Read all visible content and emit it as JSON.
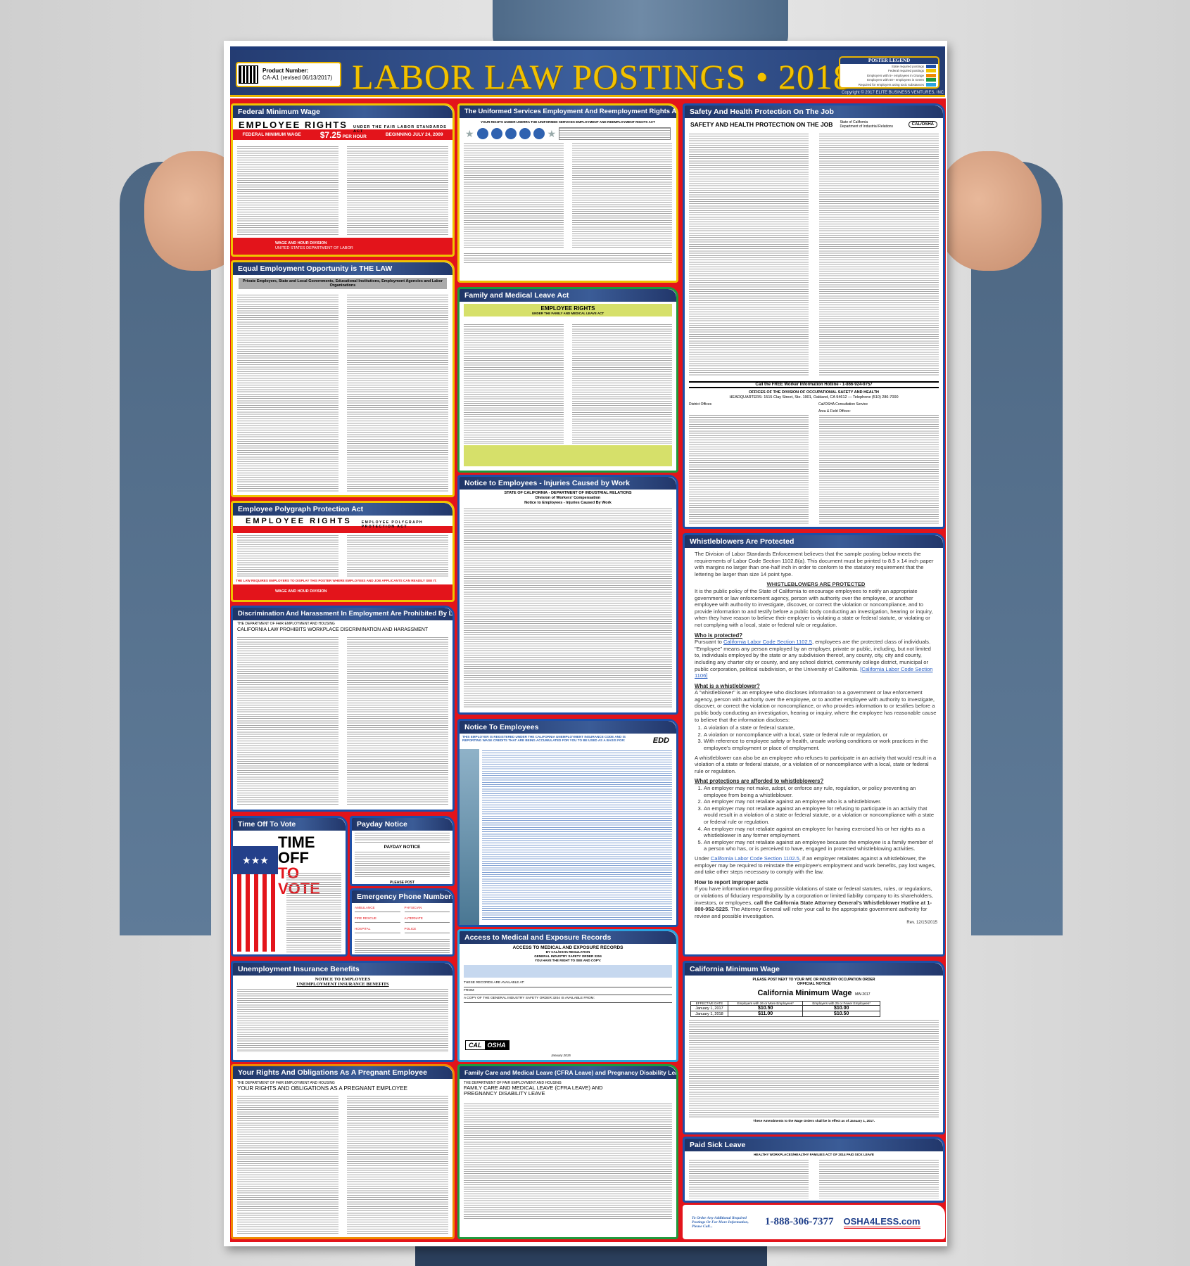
{
  "header": {
    "product_label": "Product Number:",
    "product_number": "CA-A1 (revised 06/13/2017)",
    "title": "LABOR LAW POSTINGS • 2018",
    "legend_title": "POSTER LEGEND",
    "legend_items": [
      {
        "label": "State required postings",
        "color": "#1d4fa8"
      },
      {
        "label": "Federal required postings",
        "color": "#f0c400"
      },
      {
        "label": "Employers with 5+ employees in Orange",
        "color": "#f08a00"
      },
      {
        "label": "Employers with 50+ employees in Green",
        "color": "#1e9a3c"
      },
      {
        "label": "Required for employers using toxic substances",
        "color": "#2aa3e0"
      }
    ],
    "copyright": "Copyright © 2017 ELITE BUSINESS VENTURES, INC"
  },
  "panels": {
    "fmw": {
      "title": "Federal Minimum Wage",
      "heading": "EMPLOYEE RIGHTS",
      "subheading": "UNDER THE FAIR LABOR STANDARDS ACT",
      "bar_left": "FEDERAL MINIMUM WAGE",
      "wage": "$7.25",
      "per": "PER HOUR",
      "beginning": "BEGINNING JULY 24, 2009",
      "agency": "WAGE AND HOUR DIVISION",
      "dept": "UNITED STATES DEPARTMENT OF LABOR"
    },
    "eeo": {
      "title": "Equal Employment Opportunity is THE LAW",
      "subtitle": "Private Employers, State and Local Governments, Educational Institutions, Employment Agencies and Labor Organizations"
    },
    "poly": {
      "title": "Employee Polygraph Protection Act",
      "heading": "EMPLOYEE RIGHTS",
      "subheading": "EMPLOYEE POLYGRAPH PROTECTION ACT",
      "notice": "THE LAW REQUIRES EMPLOYERS TO DISPLAY THIS POSTER WHERE EMPLOYEES AND JOB APPLICANTS CAN READILY SEE IT.",
      "agency": "WAGE AND HOUR DIVISION"
    },
    "disc": {
      "title": "Discrimination And Harassment In Employment Are Prohibited By Law",
      "dept": "THE DEPARTMENT OF FAIR EMPLOYMENT AND HOUSING",
      "heading": "CALIFORNIA LAW PROHIBITS WORKPLACE DISCRIMINATION AND HARASSMENT"
    },
    "vote": {
      "title": "Time Off To Vote",
      "heading1": "TIME OFF",
      "heading2": "TO VOTE"
    },
    "payday": {
      "title": "Payday Notice",
      "heading": "PAYDAY NOTICE",
      "post": "PLEASE POST"
    },
    "emerg": {
      "title": "Emergency Phone Numbers",
      "fields": [
        "AMBULANCE",
        "PHYSICIAN",
        "FIRE RESCUE",
        "ALTERNATE",
        "HOSPITAL",
        "POLICE"
      ]
    },
    "unemp": {
      "title": "Unemployment Insurance Benefits",
      "heading1": "NOTICE TO EMPLOYEES",
      "heading2": "UNEMPLOYMENT INSURANCE BENEFITS"
    },
    "preg": {
      "title": "Your Rights And Obligations As A Pregnant Employee",
      "dept": "THE DEPARTMENT OF FAIR EMPLOYMENT AND HOUSING",
      "heading": "YOUR RIGHTS AND OBLIGATIONS AS A PREGNANT EMPLOYEE"
    },
    "userra": {
      "title": "The Uniformed Services Employment And Reemployment Rights Act",
      "heading": "YOUR RIGHTS UNDER USERRA THE UNIFORMED SERVICES EMPLOYMENT AND REEMPLOYMENT RIGHTS ACT"
    },
    "fmla": {
      "title": "Family and Medical Leave Act",
      "heading": "EMPLOYEE RIGHTS",
      "subheading": "UNDER THE FAMILY AND MEDICAL LEAVE ACT"
    },
    "inj": {
      "title": "Notice to Employees - Injuries Caused by Work",
      "line1": "STATE OF CALIFORNIA - DEPARTMENT OF INDUSTRIAL RELATIONS",
      "line2": "Division of Workers' Compensation",
      "line3": "Notice to Employees - Injuries Caused By Work"
    },
    "notice": {
      "title": "Notice To Employees",
      "heading": "THIS EMPLOYER IS REGISTERED UNDER THE CALIFORNIA UNEMPLOYMENT INSURANCE CODE AND IS REPORTING WAGE CREDITS THAT ARE BEING ACCUMULATED FOR YOU TO BE USED AS A BASIS FOR:",
      "logo": "EDD"
    },
    "access": {
      "title": "Access to Medical and Exposure Records",
      "heading": "ACCESS TO MEDICAL AND EXPOSURE RECORDS",
      "line1": "BY CAL/OSHA REGULATION",
      "line2": "GENERAL INDUSTRY SAFETY ORDER 3204",
      "line3": "YOU HAVE THE RIGHT TO SEE AND COPY:",
      "field1": "THESE RECORDS ARE AVAILABLE AT:",
      "field2": "FROM:",
      "field3": "A COPY OF THE GENERAL INDUSTRY SAFETY ORDER 3204 IS AVAILABLE FROM:",
      "logo1": "CAL",
      "logo2": "OSHA",
      "date": "January 2015"
    },
    "cfra": {
      "title": "Family Care and Medical Leave (CFRA Leave) and Pregnancy Disability Leave",
      "dept": "THE DEPARTMENT OF FAIR EMPLOYMENT AND HOUSING",
      "heading": "FAMILY CARE AND MEDICAL LEAVE (CFRA LEAVE) AND PREGNANCY DISABILITY LEAVE"
    },
    "safety": {
      "title": "Safety And Health Protection On The Job",
      "heading": "SAFETY AND HEALTH PROTECTION ON THE JOB",
      "state": "State of California",
      "dept": "Department of Industrial Relations",
      "logo": "CAL/OSHA",
      "hotline": "Call the FREE Worker Information Hotline - 1-866-924-9757",
      "offices": "OFFICES OF THE DIVISION OF OCCUPATIONAL SAFETY AND HEALTH",
      "hq": "HEADQUARTERS: 1515 Clay Street, Ste. 1901, Oakland, CA 94612 — Telephone (510) 286-7000",
      "district": "District Offices",
      "consult": "Cal/OSHA Consultation Service",
      "area": "Area & Field Offices:"
    },
    "whistle": {
      "title": "Whistleblowers Are Protected",
      "intro": "The Division of Labor Standards Enforcement believes that the sample posting below meets the requirements of Labor Code Section 1102.8(a). This document must be printed to 8.5 x 14 inch paper with margins no larger than one-half inch in order to conform to the statutory requirement that the lettering be larger than size 14 point type.",
      "heading": "WHISTLEBLOWERS ARE PROTECTED",
      "policy": "It is the public policy of the State of California to encourage employees to notify an appropriate government or law enforcement agency, person with authority over the employee, or another employee with authority to investigate, discover, or correct the violation or noncompliance, and to provide information to and testify before a public body conducting an investigation, hearing or inquiry, when they have reason to believe their employer is violating a state or federal statute, or violating or not complying with a local, state or federal rule or regulation.",
      "who_h": "Who is protected?",
      "who_pre": "Pursuant to ",
      "who_link": "California Labor Code Section 1102.5",
      "who_body": ", employees are the protected class of individuals. \"Employee\" means any person employed by an employer, private or public, including, but not limited to, individuals employed by the state or any subdivision thereof, any county, city, city and county, including any charter city or county, and any school district, community college district, municipal or public corporation, political subdivision, or the University of California. ",
      "who_link2": "[California Labor Code Section 1106]",
      "what_h": "What is a whistleblower?",
      "what_body": "A \"whistleblower\" is an employee who discloses information to a government or law enforcement agency, person with authority over the employee, or to another employee with authority to investigate, discover, or correct the violation or noncompliance, or who provides information to or testifies before a public body conducting an investigation, hearing or inquiry, where the employee has reasonable cause to believe that the information discloses:",
      "what_list": [
        "A violation of a state or federal statute,",
        "A violation or noncompliance with a local, state or federal rule or regulation, or",
        "With reference to employee safety or health, unsafe working conditions or work practices in the employee's employment or place of employment."
      ],
      "also": "A whistleblower can also be an employee who refuses to participate in an activity that would result in a violation of a state or federal statute, or a violation of or noncompliance with a local, state or federal rule or regulation.",
      "prot_h": "What protections are afforded to whistleblowers?",
      "prot_list": [
        "An employer may not make, adopt, or enforce any rule, regulation, or policy preventing an employee from being a whistleblower.",
        "An employer may not retaliate against an employee who is a whistleblower.",
        "An employer may not retaliate against an employee for refusing to participate in an activity that would result in a violation of a state or federal statute, or a violation or noncompliance with a state or federal rule or regulation.",
        "An employer may not retaliate against an employee for having exercised his or her rights as a whistleblower in any former employment.",
        "An employer may not retaliate against an employee because the employee is a family member of a person who has, or is perceived to have, engaged in protected whistleblowing activities."
      ],
      "under_pre": "Under ",
      "under_link": "California Labor Code Section 1102.5",
      "under_body": ", if an employer retaliates against a whistleblower, the employer may be required to reinstate the employee's employment and work benefits, pay lost wages, and take other steps necessary to comply with the law.",
      "report_h": "How to report improper acts",
      "report_body": "If you have information regarding possible violations of state or federal statutes, rules, or regulations, or violations of fiduciary responsibility by a corporation or limited liability company to its shareholders, investors, or employees, ",
      "report_bold": "call the California State Attorney General's Whistleblower Hotline at 1-800-952-5225",
      "report_end": ". The Attorney General will refer your call to the appropriate government authority for review and possible investigation.",
      "rev": "Rev. 12/15/2015"
    },
    "camw": {
      "title": "California Minimum Wage",
      "post": "PLEASE POST NEXT TO YOUR IWC OR INDUSTRY OCCUPATION ORDER",
      "official": "OFFICIAL NOTICE",
      "heading": "California Minimum Wage",
      "code": "MW-2017",
      "table": {
        "headers": [
          "EFFECTIVE DATE",
          "Employers with 26 or More Employees*",
          "Employers with 25 or Fewer Employees*"
        ],
        "rows": [
          [
            "January 1, 2017",
            "$10.50",
            "$10.00"
          ],
          [
            "January 1, 2018",
            "$11.00",
            "$10.50"
          ]
        ]
      },
      "footer": "These Amendments to the Wage Orders shall be in effect as of January 1, 2017."
    },
    "sick": {
      "title": "Paid Sick Leave",
      "heading": "HEALTHY WORKPLACES/HEALTHY FAMILIES ACT OF 2014 PAID SICK LEAVE"
    },
    "footer": {
      "order": "To Order Any Additional Required Postings Or For More Information, Please Call...",
      "phone": "1-888-306-7377",
      "brand": "OSHA4LESS.com"
    }
  }
}
